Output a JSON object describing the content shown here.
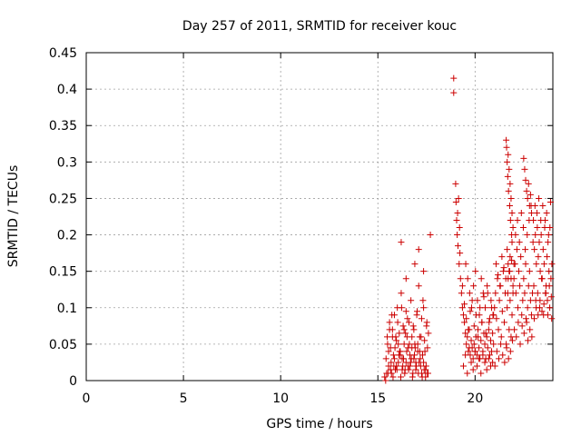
{
  "chart_data": {
    "type": "scatter",
    "title": "Day 257 of 2011, SRMTID for receiver kouc",
    "xlabel": "GPS time / hours",
    "ylabel": "SRMTID / TECUs",
    "xlim": [
      0,
      24
    ],
    "ylim": [
      0,
      0.45
    ],
    "xticks": [
      0,
      5,
      10,
      15,
      20
    ],
    "xtick_labels": [
      "0",
      "5",
      "10",
      "15",
      "20"
    ],
    "yticks": [
      0,
      0.05,
      0.1,
      0.15,
      0.2,
      0.25,
      0.3,
      0.35,
      0.4,
      0.45
    ],
    "ytick_labels": [
      "0",
      "0.05",
      "0.1",
      "0.15",
      "0.2",
      "0.25",
      "0.3",
      "0.35",
      "0.4",
      "0.45"
    ],
    "grid": true,
    "marker": "+",
    "color": "#cc0000",
    "series": [
      {
        "name": "SRMTID",
        "x": [
          15.35,
          15.42,
          15.48,
          15.55,
          15.6,
          15.65,
          15.7,
          15.75,
          15.8,
          15.85,
          15.9,
          15.95,
          16.0,
          16.05,
          16.1,
          16.15,
          16.2,
          16.25,
          16.3,
          16.35,
          16.4,
          16.45,
          16.5,
          16.55,
          16.6,
          16.65,
          16.7,
          16.75,
          16.8,
          16.85,
          16.9,
          16.95,
          17.0,
          17.05,
          17.1,
          17.15,
          17.2,
          17.25,
          17.3,
          17.35,
          17.4,
          17.45,
          17.5,
          17.55,
          17.6,
          15.45,
          15.55,
          15.65,
          15.75,
          15.85,
          15.95,
          16.05,
          16.15,
          16.25,
          16.35,
          16.45,
          16.55,
          16.65,
          16.75,
          16.85,
          16.95,
          17.05,
          17.15,
          17.25,
          17.35,
          17.45,
          17.55,
          15.5,
          15.6,
          15.72,
          15.82,
          15.92,
          16.02,
          16.12,
          16.22,
          16.32,
          16.42,
          16.52,
          16.62,
          16.72,
          16.82,
          16.92,
          17.02,
          17.12,
          17.22,
          17.32,
          17.42,
          17.52,
          15.4,
          15.52,
          15.68,
          15.78,
          15.88,
          15.98,
          16.08,
          16.18,
          16.28,
          16.38,
          16.48,
          16.58,
          16.68,
          16.78,
          16.88,
          16.98,
          17.08,
          17.18,
          17.28,
          17.38,
          17.48,
          17.58,
          16.2,
          16.45,
          16.9,
          17.1,
          17.35,
          17.7,
          18.9,
          18.9,
          19.0,
          19.02,
          19.05,
          19.08,
          19.1,
          19.12,
          19.15,
          19.18,
          19.2,
          19.22,
          19.25,
          19.3,
          19.35,
          19.4,
          19.45,
          19.5,
          19.55,
          19.6,
          19.65,
          19.7,
          19.75,
          19.8,
          19.85,
          19.9,
          19.95,
          20.0,
          20.05,
          20.1,
          20.15,
          20.2,
          20.25,
          20.3,
          20.35,
          20.4,
          20.45,
          20.5,
          20.55,
          20.6,
          20.65,
          20.7,
          20.75,
          20.8,
          20.85,
          20.9,
          20.95,
          19.35,
          19.45,
          19.55,
          19.65,
          19.75,
          19.85,
          19.95,
          20.05,
          20.15,
          20.25,
          20.35,
          20.45,
          20.55,
          20.65,
          20.75,
          20.85,
          20.95,
          19.4,
          19.5,
          19.6,
          19.7,
          19.8,
          19.9,
          20.0,
          20.1,
          20.2,
          20.3,
          20.4,
          20.5,
          20.6,
          20.7,
          20.8,
          20.9,
          19.52,
          19.62,
          19.72,
          19.82,
          19.92,
          20.02,
          20.12,
          20.22,
          20.32,
          20.42,
          20.52,
          20.62,
          20.72,
          20.82,
          20.92,
          21.0,
          21.05,
          21.1,
          21.15,
          21.2,
          21.25,
          21.3,
          21.35,
          21.4,
          21.45,
          21.5,
          21.55,
          21.6,
          21.65,
          21.7,
          21.75,
          21.8,
          21.85,
          21.9,
          21.95,
          21.02,
          21.12,
          21.22,
          21.32,
          21.42,
          21.52,
          21.62,
          21.72,
          21.82,
          21.92,
          21.08,
          21.18,
          21.28,
          21.38,
          21.48,
          21.58,
          21.68,
          21.78,
          21.88,
          21.6,
          21.62,
          21.65,
          21.68,
          21.7,
          21.72,
          21.75,
          21.78,
          21.8,
          21.82,
          21.85,
          21.88,
          21.9,
          21.95,
          21.65,
          21.7,
          21.75,
          21.8,
          21.85,
          21.9,
          21.95,
          22.0,
          22.0,
          22.05,
          22.1,
          22.15,
          22.2,
          22.25,
          22.3,
          22.35,
          22.4,
          22.45,
          22.5,
          22.55,
          22.6,
          22.65,
          22.7,
          22.75,
          22.8,
          22.85,
          22.9,
          22.95,
          22.02,
          22.12,
          22.22,
          22.32,
          22.42,
          22.52,
          22.62,
          22.72,
          22.82,
          22.92,
          22.08,
          22.18,
          22.28,
          22.38,
          22.48,
          22.58,
          22.68,
          22.78,
          22.88,
          22.98,
          22.5,
          22.55,
          22.6,
          22.65,
          22.7,
          22.75,
          22.8,
          22.85,
          22.9,
          23.0,
          23.05,
          23.1,
          23.15,
          23.2,
          23.25,
          23.3,
          23.35,
          23.4,
          23.45,
          23.5,
          23.55,
          23.6,
          23.65,
          23.7,
          23.75,
          23.8,
          23.85,
          23.9,
          23.95,
          23.02,
          23.12,
          23.22,
          23.32,
          23.42,
          23.52,
          23.62,
          23.72,
          23.82,
          23.92,
          23.08,
          23.18,
          23.28,
          23.38,
          23.48,
          23.58,
          23.68,
          23.78,
          23.88,
          23.04,
          23.14,
          23.24,
          23.34,
          23.44,
          23.54,
          23.64,
          23.74,
          23.84,
          23.94
        ],
        "y": [
          0.005,
          0.03,
          0.06,
          0.02,
          0.08,
          0.045,
          0.01,
          0.07,
          0.035,
          0.09,
          0.015,
          0.055,
          0.1,
          0.025,
          0.065,
          0.04,
          0.12,
          0.03,
          0.075,
          0.05,
          0.015,
          0.095,
          0.06,
          0.02,
          0.08,
          0.035,
          0.11,
          0.045,
          0.01,
          0.07,
          0.05,
          0.025,
          0.09,
          0.04,
          0.13,
          0.06,
          0.02,
          0.085,
          0.035,
          0.1,
          0.055,
          0.015,
          0.075,
          0.045,
          0.065,
          0.01,
          0.04,
          0.015,
          0.06,
          0.03,
          0.02,
          0.05,
          0.035,
          0.015,
          0.07,
          0.025,
          0.045,
          0.02,
          0.06,
          0.03,
          0.015,
          0.05,
          0.04,
          0.01,
          0.025,
          0.005,
          0.01,
          0.05,
          0.07,
          0.09,
          0.02,
          0.06,
          0.08,
          0.04,
          0.1,
          0.03,
          0.065,
          0.085,
          0.05,
          0.03,
          0.075,
          0.045,
          0.095,
          0.025,
          0.06,
          0.11,
          0.04,
          0.08,
          0.0,
          0.01,
          0.025,
          0.005,
          0.045,
          0.015,
          0.035,
          0.005,
          0.02,
          0.01,
          0.04,
          0.015,
          0.025,
          0.005,
          0.035,
          0.02,
          0.01,
          0.03,
          0.005,
          0.015,
          0.02,
          0.01,
          0.19,
          0.14,
          0.16,
          0.18,
          0.15,
          0.2,
          0.415,
          0.395,
          0.27,
          0.245,
          0.22,
          0.2,
          0.23,
          0.185,
          0.25,
          0.16,
          0.21,
          0.175,
          0.14,
          0.12,
          0.1,
          0.09,
          0.08,
          0.065,
          0.05,
          0.06,
          0.04,
          0.07,
          0.035,
          0.055,
          0.045,
          0.03,
          0.05,
          0.04,
          0.06,
          0.035,
          0.07,
          0.045,
          0.03,
          0.055,
          0.08,
          0.04,
          0.065,
          0.05,
          0.03,
          0.06,
          0.045,
          0.07,
          0.035,
          0.055,
          0.04,
          0.065,
          0.05,
          0.13,
          0.105,
          0.085,
          0.07,
          0.095,
          0.11,
          0.075,
          0.09,
          0.06,
          0.1,
          0.08,
          0.115,
          0.065,
          0.12,
          0.085,
          0.1,
          0.09,
          0.02,
          0.035,
          0.01,
          0.045,
          0.025,
          0.015,
          0.04,
          0.02,
          0.03,
          0.01,
          0.035,
          0.025,
          0.015,
          0.03,
          0.02,
          0.025,
          0.16,
          0.14,
          0.12,
          0.1,
          0.13,
          0.15,
          0.11,
          0.09,
          0.14,
          0.12,
          0.1,
          0.13,
          0.08,
          0.11,
          0.09,
          0.1,
          0.12,
          0.085,
          0.14,
          0.07,
          0.11,
          0.13,
          0.06,
          0.095,
          0.15,
          0.08,
          0.12,
          0.05,
          0.1,
          0.14,
          0.07,
          0.11,
          0.06,
          0.09,
          0.13,
          0.02,
          0.04,
          0.03,
          0.05,
          0.035,
          0.025,
          0.045,
          0.03,
          0.04,
          0.055,
          0.16,
          0.145,
          0.13,
          0.17,
          0.155,
          0.14,
          0.12,
          0.15,
          0.165,
          0.33,
          0.32,
          0.3,
          0.28,
          0.31,
          0.26,
          0.29,
          0.24,
          0.27,
          0.22,
          0.25,
          0.2,
          0.23,
          0.21,
          0.18,
          0.16,
          0.15,
          0.17,
          0.14,
          0.19,
          0.12,
          0.16,
          0.14,
          0.16,
          0.12,
          0.18,
          0.1,
          0.15,
          0.13,
          0.17,
          0.09,
          0.11,
          0.14,
          0.12,
          0.16,
          0.08,
          0.1,
          0.13,
          0.15,
          0.11,
          0.09,
          0.12,
          0.07,
          0.06,
          0.08,
          0.05,
          0.075,
          0.065,
          0.085,
          0.055,
          0.07,
          0.06,
          0.2,
          0.22,
          0.19,
          0.23,
          0.21,
          0.18,
          0.2,
          0.22,
          0.24,
          0.19,
          0.305,
          0.29,
          0.275,
          0.26,
          0.25,
          0.27,
          0.24,
          0.255,
          0.23,
          0.22,
          0.18,
          0.2,
          0.16,
          0.21,
          0.17,
          0.19,
          0.15,
          0.2,
          0.14,
          0.18,
          0.16,
          0.22,
          0.13,
          0.17,
          0.19,
          0.15,
          0.21,
          0.14,
          0.16,
          0.13,
          0.11,
          0.12,
          0.1,
          0.14,
          0.09,
          0.12,
          0.11,
          0.13,
          0.115,
          0.24,
          0.23,
          0.25,
          0.22,
          0.24,
          0.21,
          0.23,
          0.2,
          0.245,
          0.085,
          0.1,
          0.09,
          0.11,
          0.095,
          0.105,
          0.12,
          0.09,
          0.1,
          0.085
        ]
      }
    ]
  }
}
